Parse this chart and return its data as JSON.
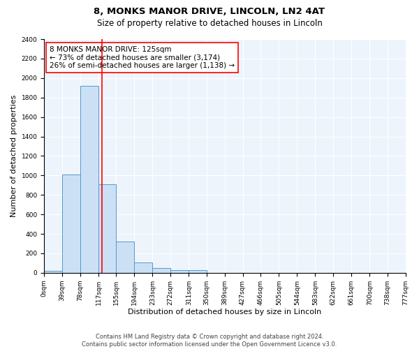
{
  "title_line1": "8, MONKS MANOR DRIVE, LINCOLN, LN2 4AT",
  "title_line2": "Size of property relative to detached houses in Lincoln",
  "xlabel": "Distribution of detached houses by size in Lincoln",
  "ylabel": "Number of detached properties",
  "bar_color": "#cce0f5",
  "bar_edge_color": "#5599cc",
  "background_color": "#eef4fb",
  "grid_color": "#ffffff",
  "red_line_x": 125,
  "annotation_text_line1": "8 MONKS MANOR DRIVE: 125sqm",
  "annotation_text_line2": "← 73% of detached houses are smaller (3,174)",
  "annotation_text_line3": "26% of semi-detached houses are larger (1,138) →",
  "bins": [
    0,
    39,
    78,
    117,
    155,
    194,
    233,
    272,
    311,
    350,
    389,
    427,
    466,
    505,
    544,
    583,
    622,
    661,
    700,
    738,
    777
  ],
  "bar_heights": [
    20,
    1010,
    1920,
    910,
    320,
    110,
    50,
    25,
    25,
    0,
    0,
    0,
    0,
    0,
    0,
    0,
    0,
    0,
    0,
    0
  ],
  "ylim": [
    0,
    2400
  ],
  "yticks": [
    0,
    200,
    400,
    600,
    800,
    1000,
    1200,
    1400,
    1600,
    1800,
    2000,
    2200,
    2400
  ],
  "tick_labels": [
    "0sqm",
    "39sqm",
    "78sqm",
    "117sqm",
    "155sqm",
    "194sqm",
    "233sqm",
    "272sqm",
    "311sqm",
    "350sqm",
    "389sqm",
    "427sqm",
    "466sqm",
    "505sqm",
    "544sqm",
    "583sqm",
    "622sqm",
    "661sqm",
    "700sqm",
    "738sqm",
    "777sqm"
  ],
  "footnote": "Contains HM Land Registry data © Crown copyright and database right 2024.\nContains public sector information licensed under the Open Government Licence v3.0.",
  "title_fontsize": 9.5,
  "subtitle_fontsize": 8.5,
  "axis_label_fontsize": 8,
  "tick_fontsize": 6.5,
  "annotation_fontsize": 7.5,
  "footnote_fontsize": 6.0
}
